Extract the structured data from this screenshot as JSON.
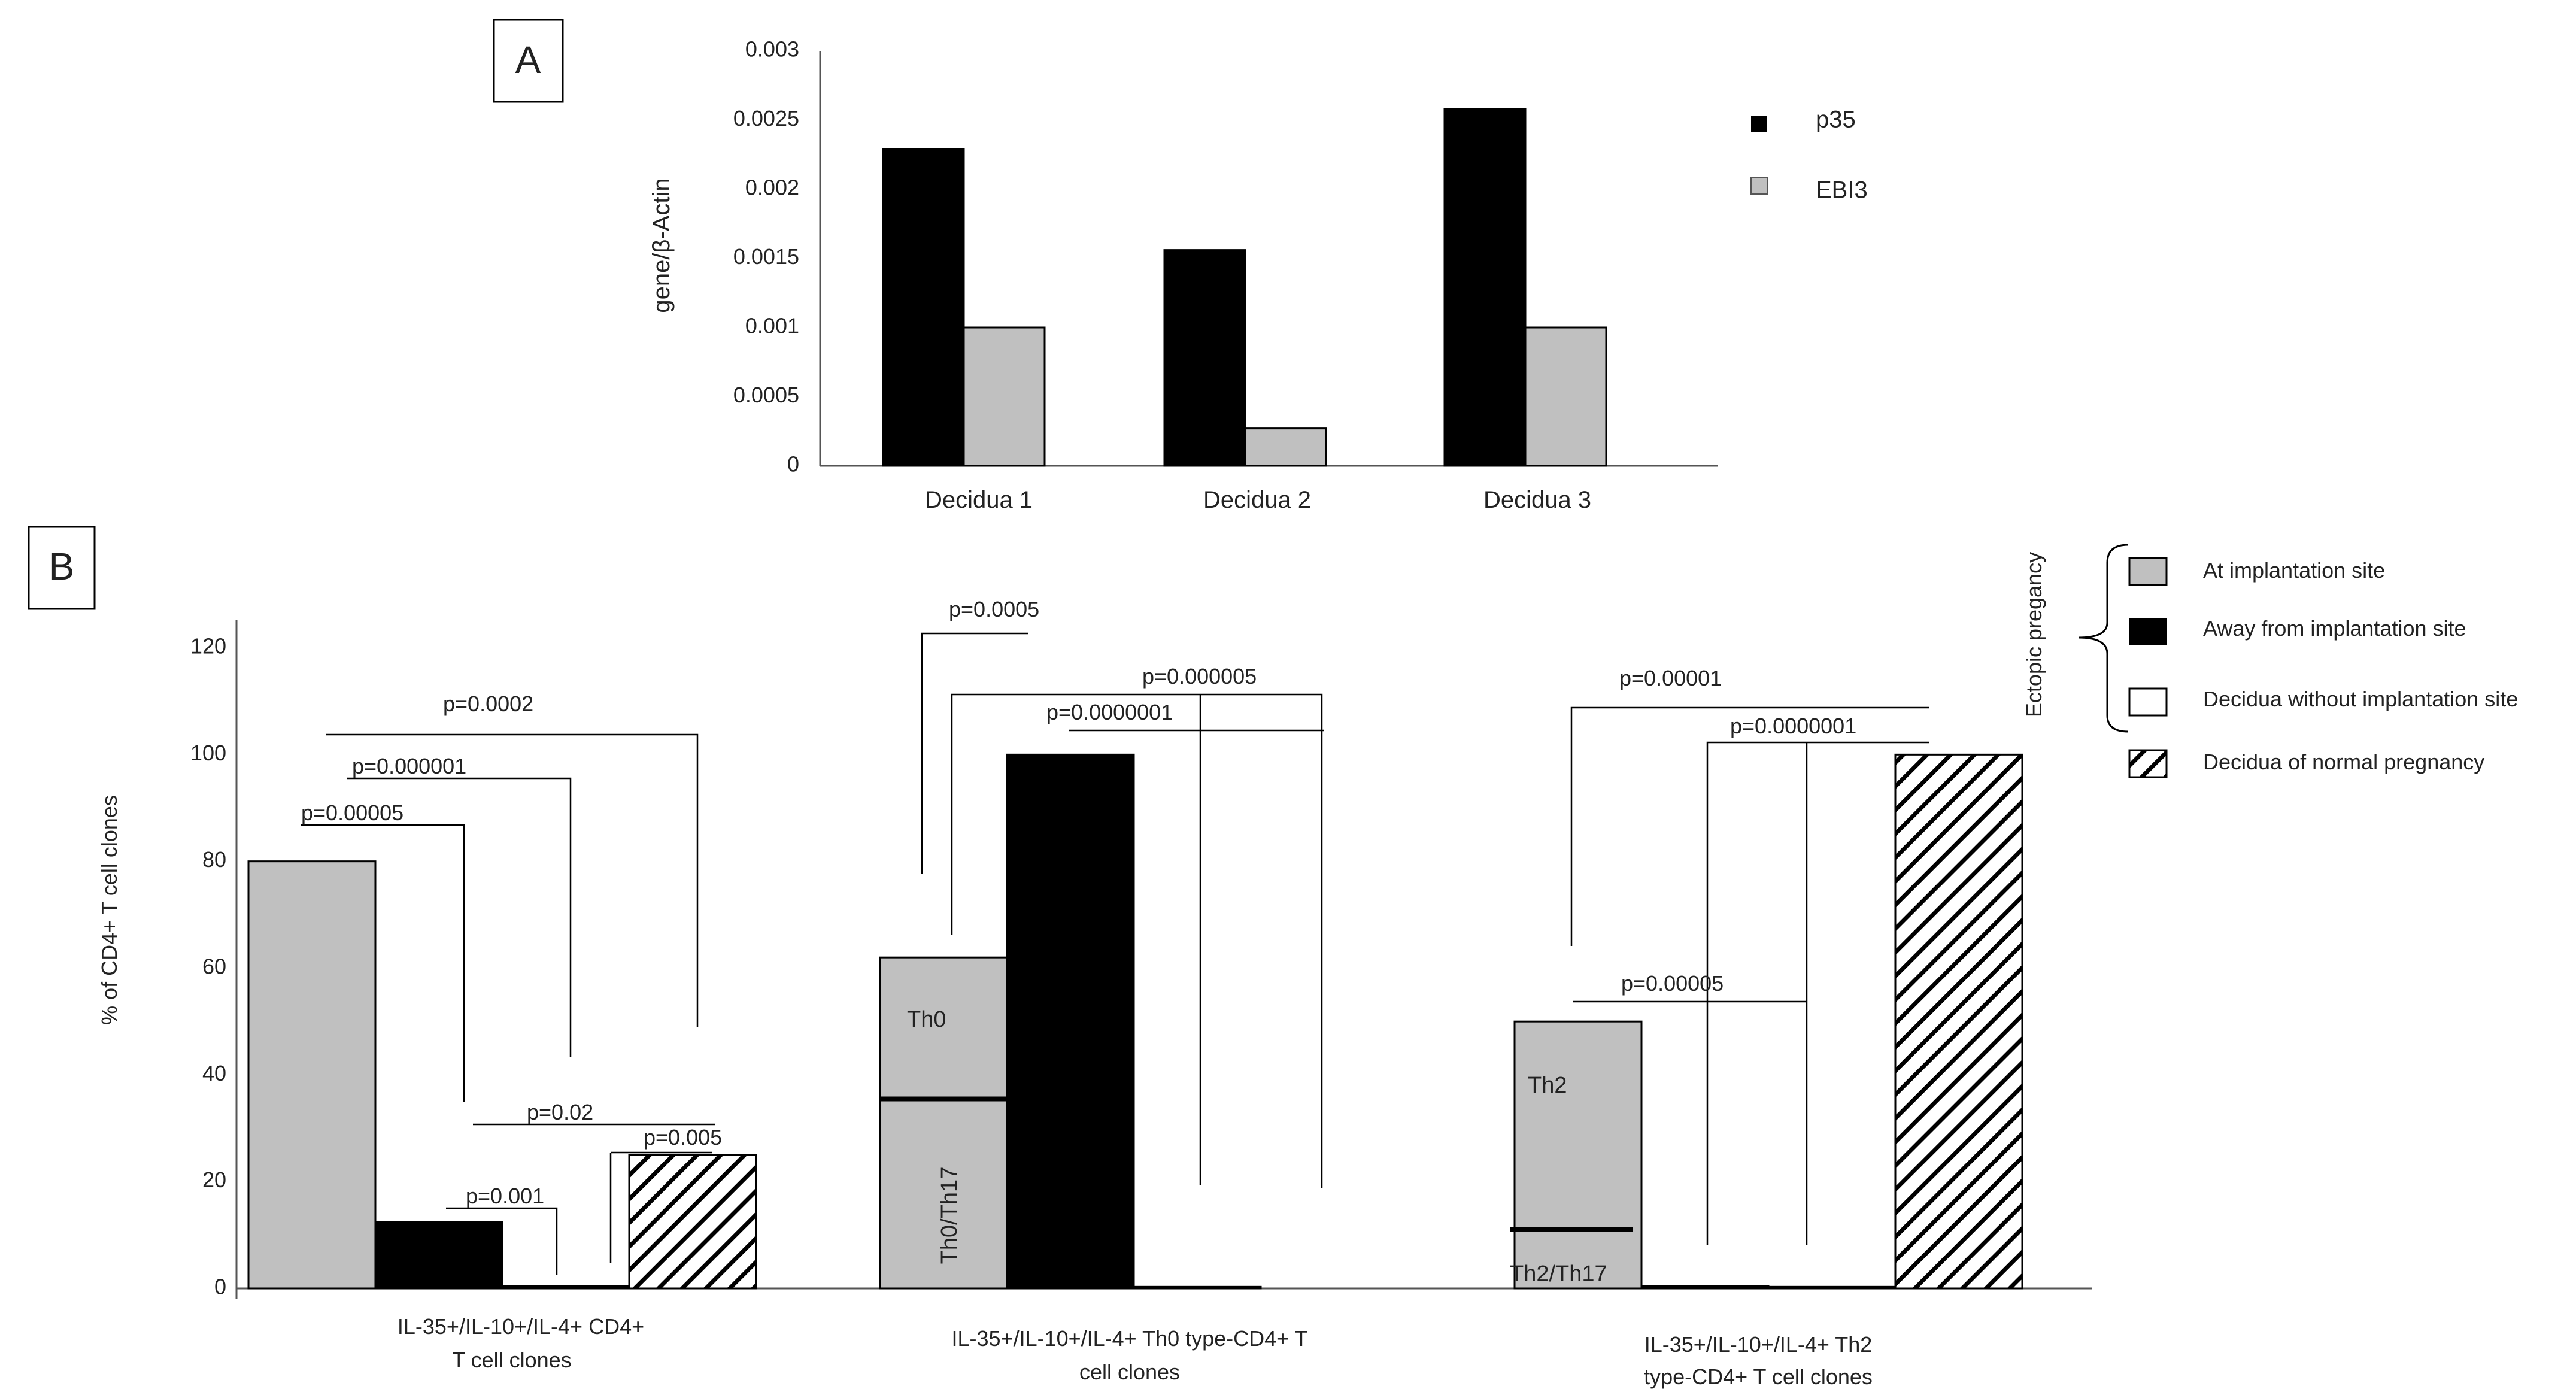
{
  "colors": {
    "black": "#000000",
    "gray": "#c0c0c0",
    "white": "#ffffff",
    "axis": "#555555"
  },
  "chart_data": [
    {
      "panel_label": "A",
      "type": "bar",
      "ylabel": "gene/β-Actin",
      "ylim": [
        0,
        0.003
      ],
      "yticks": [
        "0",
        "0.0005",
        "0.001",
        "0.0015",
        "0.002",
        "0.0025",
        "0.003"
      ],
      "categories": [
        "Decidua 1",
        "Decidua 2",
        "Decidua 3"
      ],
      "series": [
        {
          "name": "p35",
          "color": "#000000",
          "values": [
            0.00229,
            0.00156,
            0.00258
          ]
        },
        {
          "name": "EBI3",
          "color": "#c0c0c0",
          "values": [
            0.001,
            0.00027,
            0.001
          ]
        }
      ],
      "legend_position": "right"
    },
    {
      "panel_label": "B",
      "type": "bar",
      "ylabel": "% of CD4+ T cell clones",
      "ylim": [
        0,
        120
      ],
      "yticks": [
        "0",
        "20",
        "40",
        "60",
        "80",
        "100",
        "120"
      ],
      "group_labels": [
        [
          "IL-35+/IL-10+/IL-4+ CD4+",
          "T cell clones"
        ],
        [
          "IL-35+/IL-10+/IL-4+ Th0 type-CD4+ T",
          "cell clones"
        ],
        [
          "IL-35+/IL-10+/IL-4+ Th2",
          "type-CD4+ T cell clones"
        ]
      ],
      "series": [
        {
          "name": "At implantation site",
          "values": [
            80,
            62,
            50
          ]
        },
        {
          "name": "Away from implantation site",
          "values": [
            12.5,
            100,
            0.5
          ]
        },
        {
          "name": "Decidua without implantation site",
          "values": [
            0.5,
            0.3,
            0.3
          ]
        },
        {
          "name": "Decidua of normal pregnancy",
          "values": [
            25,
            0,
            100
          ]
        }
      ],
      "legend_bracket": "Ectopic pregancy",
      "subdivisions": [
        {
          "upper": "Th0",
          "lower": "Th0/Th17",
          "split": 35.5
        },
        {
          "upper": "Th2",
          "lower": "Th2/Th17",
          "split": 11
        }
      ],
      "annotations": [
        "p=0.0002",
        "p=0.000001",
        "p=0.00005",
        "p=0.02",
        "p=0.005",
        "p=0.001",
        "p=0.0005",
        "p=0.000005",
        "p=0.0000001",
        "p=0.00001",
        "p=0.0000001",
        "p=0.00005"
      ]
    }
  ]
}
